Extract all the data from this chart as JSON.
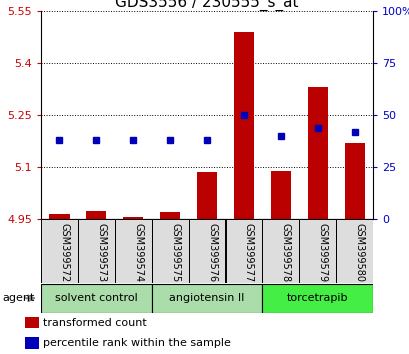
{
  "title": "GDS3556 / 230555_s_at",
  "samples": [
    "GSM399572",
    "GSM399573",
    "GSM399574",
    "GSM399575",
    "GSM399576",
    "GSM399577",
    "GSM399578",
    "GSM399579",
    "GSM399580"
  ],
  "transformed_counts": [
    4.965,
    4.975,
    4.958,
    4.972,
    5.085,
    5.49,
    5.088,
    5.33,
    5.17
  ],
  "percentile_ranks": [
    38,
    38,
    38,
    38,
    38,
    50,
    40,
    44,
    42
  ],
  "ylim_left": [
    4.95,
    5.55
  ],
  "ylim_right": [
    0,
    100
  ],
  "yticks_left": [
    4.95,
    5.1,
    5.25,
    5.4,
    5.55
  ],
  "yticks_right": [
    0,
    25,
    50,
    75,
    100
  ],
  "ytick_labels_left": [
    "4.95",
    "5.1",
    "5.25",
    "5.4",
    "5.55"
  ],
  "ytick_labels_right": [
    "0",
    "25",
    "50",
    "75",
    "100%"
  ],
  "bar_color": "#bb0000",
  "dot_color": "#0000bb",
  "bar_bottom": 4.95,
  "groups": [
    {
      "label": "solvent control",
      "indices": [
        0,
        1,
        2
      ],
      "color": "#aaddaa"
    },
    {
      "label": "angiotensin II",
      "indices": [
        3,
        4,
        5
      ],
      "color": "#aaddaa"
    },
    {
      "label": "torcetrapib",
      "indices": [
        6,
        7,
        8
      ],
      "color": "#44ee44"
    }
  ],
  "agent_label": "agent",
  "legend_items": [
    {
      "color": "#bb0000",
      "label": "transformed count"
    },
    {
      "color": "#0000bb",
      "label": "percentile rank within the sample"
    }
  ],
  "grid_color": "black",
  "grid_style": "dotted",
  "bg_color": "#ffffff",
  "plot_bg_color": "#ffffff",
  "left_tick_color": "#cc0000",
  "right_tick_color": "#0000cc",
  "title_fontsize": 11,
  "tick_fontsize": 8,
  "sample_fontsize": 7,
  "group_fontsize": 8,
  "bar_width": 0.55
}
